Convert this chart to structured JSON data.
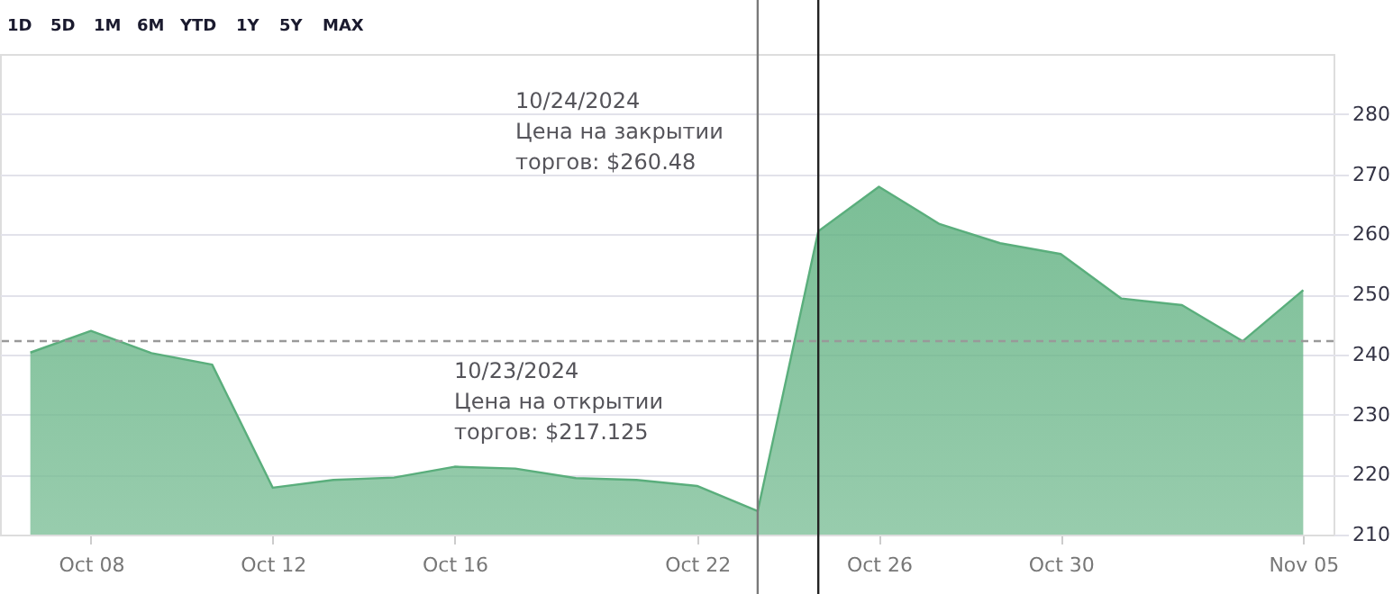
{
  "chart_data": {
    "type": "area",
    "categories": [
      null,
      "Oct 08",
      null,
      null,
      "Oct 12",
      null,
      null,
      "Oct 16",
      null,
      null,
      null,
      "Oct 22",
      null,
      null,
      "Oct 26",
      null,
      null,
      "Oct 30",
      null,
      null,
      null,
      "Nov 05"
    ],
    "series": [
      {
        "color": "#5aae7c",
        "values": [
          240.3,
          243.9,
          240.2,
          238.3,
          217.8,
          219.1,
          219.5,
          221.3,
          221.0,
          219.4,
          219.1,
          218.1,
          213.9,
          260.5,
          267.9,
          261.7,
          258.5,
          256.7,
          249.3,
          248.2,
          242.2,
          250.7
        ]
      }
    ],
    "ylim": [
      210,
      290
    ],
    "yticks": [
      210,
      220,
      230,
      240,
      250,
      260,
      270,
      280
    ],
    "grid": "y",
    "marker": "none",
    "ref_lines": [
      {
        "axis": "y",
        "value": 242.2,
        "color": "#999999",
        "line_style": "dashed"
      }
    ],
    "annotations": [
      "10/24/2024\n\nЦена на закрытии\nторгов: $260.48",
      "10/23/2024\n\nЦена на открытии\nторгов: $217.125",
      "1D",
      "5D",
      "1M",
      "6M",
      "YTD",
      "1Y",
      "5Y",
      "MAX"
    ]
  }
}
